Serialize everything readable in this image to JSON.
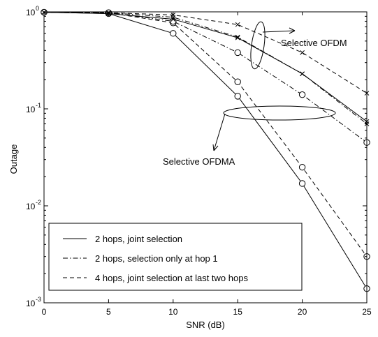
{
  "chart_data": {
    "type": "line",
    "title": "",
    "xlabel": "SNR (dB)",
    "ylabel": "Outage",
    "xlim": [
      0,
      25
    ],
    "ylim": [
      0.001,
      1
    ],
    "yscale": "log",
    "grid": false,
    "legend_position": "bottom-left",
    "x_ticks": [
      "0",
      "5",
      "10",
      "15",
      "20",
      "25"
    ],
    "y_ticks": [
      {
        "base": "10",
        "exp": "0",
        "value": 1
      },
      {
        "base": "10",
        "exp": "-1",
        "value": 0.1
      },
      {
        "base": "10",
        "exp": "-2",
        "value": 0.01
      },
      {
        "base": "10",
        "exp": "-3",
        "value": 0.001
      }
    ],
    "legend": [
      {
        "label": "2 hops, joint selection",
        "dash": "solid"
      },
      {
        "label": "2 hops, selection only at hop 1",
        "dash": "dashdot"
      },
      {
        "label": "4 hops, joint selection at last two hops",
        "dash": "dashed"
      }
    ],
    "annotations": [
      {
        "text": "Selective OFDM",
        "group": "ofdm"
      },
      {
        "text": "Selective OFDMA",
        "group": "ofdma"
      }
    ],
    "series": [
      {
        "group": "ofdma",
        "dash": "solid",
        "marker": "o",
        "x": [
          0,
          5,
          10,
          15,
          20,
          25
        ],
        "y": [
          0.99,
          0.96,
          0.6,
          0.135,
          0.017,
          0.0014
        ]
      },
      {
        "group": "ofdma",
        "dash": "dashed",
        "marker": "o",
        "x": [
          0,
          5,
          10,
          15,
          20,
          25
        ],
        "y": [
          0.99,
          0.98,
          0.77,
          0.19,
          0.025,
          0.003
        ]
      },
      {
        "group": "ofdma",
        "dash": "dashdot",
        "marker": "o",
        "x": [
          0,
          5,
          10,
          15,
          20,
          25
        ],
        "y": [
          0.99,
          0.98,
          0.8,
          0.38,
          0.14,
          0.045
        ]
      },
      {
        "group": "ofdm",
        "dash": "solid",
        "marker": "x",
        "x": [
          0,
          5,
          10,
          15,
          20,
          25
        ],
        "y": [
          0.99,
          0.96,
          0.84,
          0.54,
          0.23,
          0.074
        ]
      },
      {
        "group": "ofdm",
        "dash": "dashed",
        "marker": "x",
        "x": [
          0,
          5,
          10,
          15,
          20,
          25
        ],
        "y": [
          0.99,
          0.98,
          0.93,
          0.74,
          0.38,
          0.145
        ]
      },
      {
        "group": "ofdm",
        "dash": "dashdot",
        "marker": "x",
        "x": [
          0,
          5,
          10,
          15,
          20,
          25
        ],
        "y": [
          0.99,
          0.98,
          0.88,
          0.55,
          0.23,
          0.07
        ]
      }
    ]
  }
}
